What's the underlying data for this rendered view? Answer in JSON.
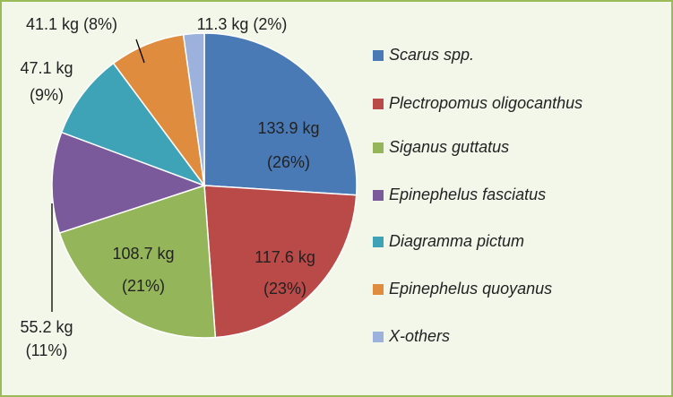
{
  "chart_data": {
    "type": "pie",
    "categories": [
      "Scarus spp.",
      "Plectropomus oligocanthus",
      "Siganus guttatus",
      "Epinephelus fasciatus",
      "Diagramma pictum",
      "Epinephelus quoyanus",
      "X-others"
    ],
    "values": [
      133.9,
      117.6,
      108.7,
      55.2,
      47.1,
      41.1,
      11.3
    ],
    "value_labels": [
      [
        "133.9 kg",
        "(26%)"
      ],
      [
        "117.6 kg",
        "(23%)"
      ],
      [
        "108.7 kg",
        "(21%)"
      ],
      [
        "55.2 kg",
        "(11%)"
      ],
      [
        "47.1 kg",
        "(9%)"
      ],
      [
        "41.1 kg (8%)"
      ],
      [
        "11.3 kg (2%)"
      ]
    ],
    "colors": [
      "#4a7ab5",
      "#b94a48",
      "#95b55a",
      "#7a5a9a",
      "#3fa3b8",
      "#e08c3e",
      "#9db1dd"
    ],
    "legend": "right"
  }
}
